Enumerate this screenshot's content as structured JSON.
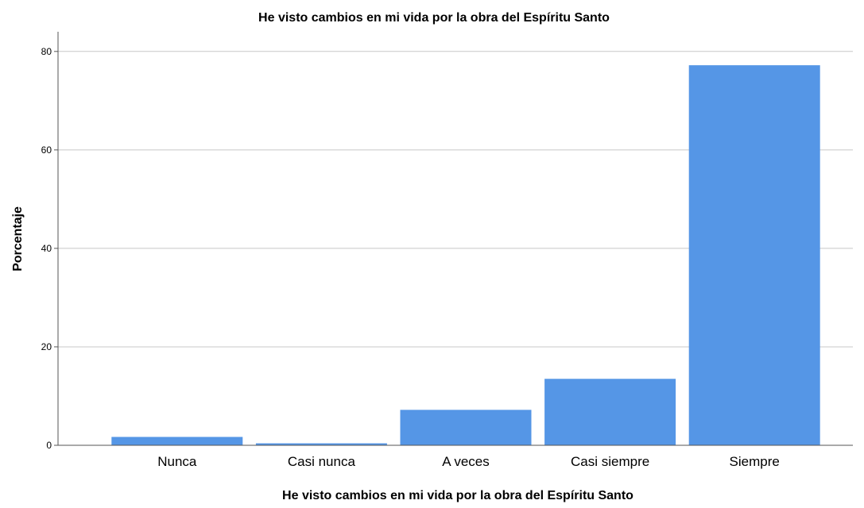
{
  "chart_data": {
    "type": "bar",
    "title": "He visto cambios en mi vida por la obra del Espíritu Santo",
    "xlabel": "He visto cambios en mi vida por la obra del Espíritu Santo",
    "ylabel": "Porcentaje",
    "categories": [
      "Nunca",
      "Casi nunca",
      "A veces",
      "Casi siempre",
      "Siempre"
    ],
    "values": [
      1.7,
      0.4,
      7.2,
      13.5,
      77.2
    ],
    "yticks": [
      "0",
      "20",
      "40",
      "60",
      "80"
    ],
    "ylim": [
      0,
      84
    ],
    "grid": true,
    "legend": "none",
    "colors": {
      "bar": "#5596e6",
      "grid": "#c8c8c8",
      "axis": "#555555"
    }
  }
}
